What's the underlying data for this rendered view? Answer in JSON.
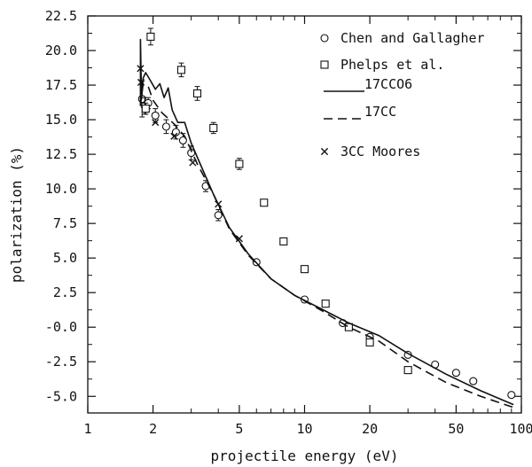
{
  "chart_data": {
    "type": "scatter",
    "title": "",
    "xlabel": "projectile energy (eV)",
    "ylabel": "polarization (%)",
    "x_scale": "log",
    "xlim": [
      1,
      100
    ],
    "ylim": [
      -6.2,
      22.5
    ],
    "x_ticks": [
      {
        "value": 1,
        "label": "1"
      },
      {
        "value": 2,
        "label": "2"
      },
      {
        "value": 5,
        "label": "5"
      },
      {
        "value": 10,
        "label": "10"
      },
      {
        "value": 20,
        "label": "20"
      },
      {
        "value": 50,
        "label": "50"
      },
      {
        "value": 100,
        "label": "100"
      }
    ],
    "y_ticks": [
      {
        "value": 22.5,
        "label": "22.5"
      },
      {
        "value": 20.0,
        "label": "20.0"
      },
      {
        "value": 17.5,
        "label": "17.5"
      },
      {
        "value": 15.0,
        "label": "15.0"
      },
      {
        "value": 12.5,
        "label": "12.5"
      },
      {
        "value": 10.0,
        "label": "10.0"
      },
      {
        "value": 7.5,
        "label": "7.5"
      },
      {
        "value": 5.0,
        "label": "5.0"
      },
      {
        "value": 2.5,
        "label": "2.5"
      },
      {
        "value": 0.0,
        "label": "-0.0"
      },
      {
        "value": -2.5,
        "label": "-2.5"
      },
      {
        "value": -5.0,
        "label": "-5.0"
      }
    ],
    "grid": false,
    "legend_position": "top-right",
    "series": [
      {
        "name": "Chen and Gallagher",
        "kind": "points",
        "marker": "circle",
        "points": [
          {
            "x": 1.78,
            "y": 16.5,
            "err": 1.3
          },
          {
            "x": 1.83,
            "y": 16.0,
            "err": 0.6
          },
          {
            "x": 1.9,
            "y": 16.2,
            "err": 0.4
          },
          {
            "x": 2.05,
            "y": 15.3,
            "err": 0.5
          },
          {
            "x": 2.3,
            "y": 14.5,
            "err": 0.5
          },
          {
            "x": 2.55,
            "y": 14.1,
            "err": 0.5
          },
          {
            "x": 2.75,
            "y": 13.5,
            "err": 0.5
          },
          {
            "x": 3.0,
            "y": 12.6,
            "err": 0.5
          },
          {
            "x": 3.5,
            "y": 10.2,
            "err": 0.4
          },
          {
            "x": 4.0,
            "y": 8.1,
            "err": 0.4
          },
          {
            "x": 6.0,
            "y": 4.7
          },
          {
            "x": 10.0,
            "y": 2.0
          },
          {
            "x": 15.0,
            "y": 0.3
          },
          {
            "x": 20.0,
            "y": -0.7
          },
          {
            "x": 30.0,
            "y": -2.0
          },
          {
            "x": 40.0,
            "y": -2.7
          },
          {
            "x": 50.0,
            "y": -3.3
          },
          {
            "x": 60.0,
            "y": -3.9
          },
          {
            "x": 90.0,
            "y": -4.9
          }
        ]
      },
      {
        "name": "Phelps et al.",
        "kind": "points",
        "marker": "square",
        "points": [
          {
            "x": 1.85,
            "y": 15.8,
            "err": 0.4
          },
          {
            "x": 1.95,
            "y": 21.0,
            "err": 0.6
          },
          {
            "x": 2.7,
            "y": 18.6,
            "err": 0.5
          },
          {
            "x": 3.2,
            "y": 16.9,
            "err": 0.5
          },
          {
            "x": 3.8,
            "y": 14.4,
            "err": 0.4
          },
          {
            "x": 5.0,
            "y": 11.8,
            "err": 0.4
          },
          {
            "x": 6.5,
            "y": 9.0
          },
          {
            "x": 8.0,
            "y": 6.2
          },
          {
            "x": 10.0,
            "y": 4.2
          },
          {
            "x": 12.5,
            "y": 1.7
          },
          {
            "x": 16.0,
            "y": 0.0
          },
          {
            "x": 20.0,
            "y": -1.1
          },
          {
            "x": 30.0,
            "y": -3.1
          }
        ]
      },
      {
        "name": "17CC06",
        "label": "17CCO6",
        "kind": "line",
        "style": "solid",
        "points": [
          [
            1.75,
            16.0
          ],
          [
            1.75,
            20.8
          ],
          [
            1.77,
            16.5
          ],
          [
            1.8,
            18.0
          ],
          [
            1.85,
            18.4
          ],
          [
            1.95,
            17.8
          ],
          [
            2.05,
            17.2
          ],
          [
            2.15,
            17.6
          ],
          [
            2.25,
            16.6
          ],
          [
            2.35,
            17.3
          ],
          [
            2.45,
            15.7
          ],
          [
            2.6,
            14.8
          ],
          [
            2.8,
            14.8
          ],
          [
            3.0,
            13.3
          ],
          [
            3.3,
            11.8
          ],
          [
            3.8,
            9.6
          ],
          [
            4.5,
            7.2
          ],
          [
            5.5,
            5.3
          ],
          [
            7.0,
            3.5
          ],
          [
            9.0,
            2.3
          ],
          [
            12.0,
            1.3
          ],
          [
            16.0,
            0.3
          ],
          [
            22.0,
            -0.6
          ],
          [
            30.0,
            -1.9
          ],
          [
            45.0,
            -3.4
          ],
          [
            65.0,
            -4.6
          ],
          [
            92.0,
            -5.6
          ]
        ]
      },
      {
        "name": "17CC",
        "kind": "line",
        "style": "dashed",
        "points": [
          [
            1.75,
            16.0
          ],
          [
            1.8,
            17.6
          ],
          [
            1.9,
            17.4
          ],
          [
            2.0,
            16.4
          ],
          [
            2.2,
            15.5
          ],
          [
            2.5,
            14.7
          ],
          [
            2.8,
            13.8
          ],
          [
            3.2,
            11.8
          ],
          [
            3.8,
            9.6
          ],
          [
            4.5,
            7.1
          ],
          [
            5.5,
            5.2
          ],
          [
            7.0,
            3.5
          ],
          [
            9.0,
            2.3
          ],
          [
            12.0,
            1.2
          ],
          [
            16.0,
            0.0
          ],
          [
            22.0,
            -1.0
          ],
          [
            30.0,
            -2.5
          ],
          [
            45.0,
            -4.0
          ],
          [
            65.0,
            -5.0
          ],
          [
            92.0,
            -5.8
          ]
        ]
      },
      {
        "name": "3CC Moores",
        "kind": "points",
        "marker": "x",
        "points": [
          {
            "x": 1.75,
            "y": 18.7
          },
          {
            "x": 1.76,
            "y": 17.7
          },
          {
            "x": 2.05,
            "y": 14.8
          },
          {
            "x": 2.5,
            "y": 13.8
          },
          {
            "x": 3.05,
            "y": 11.9
          },
          {
            "x": 4.0,
            "y": 8.9
          },
          {
            "x": 5.0,
            "y": 6.4
          }
        ]
      }
    ]
  }
}
